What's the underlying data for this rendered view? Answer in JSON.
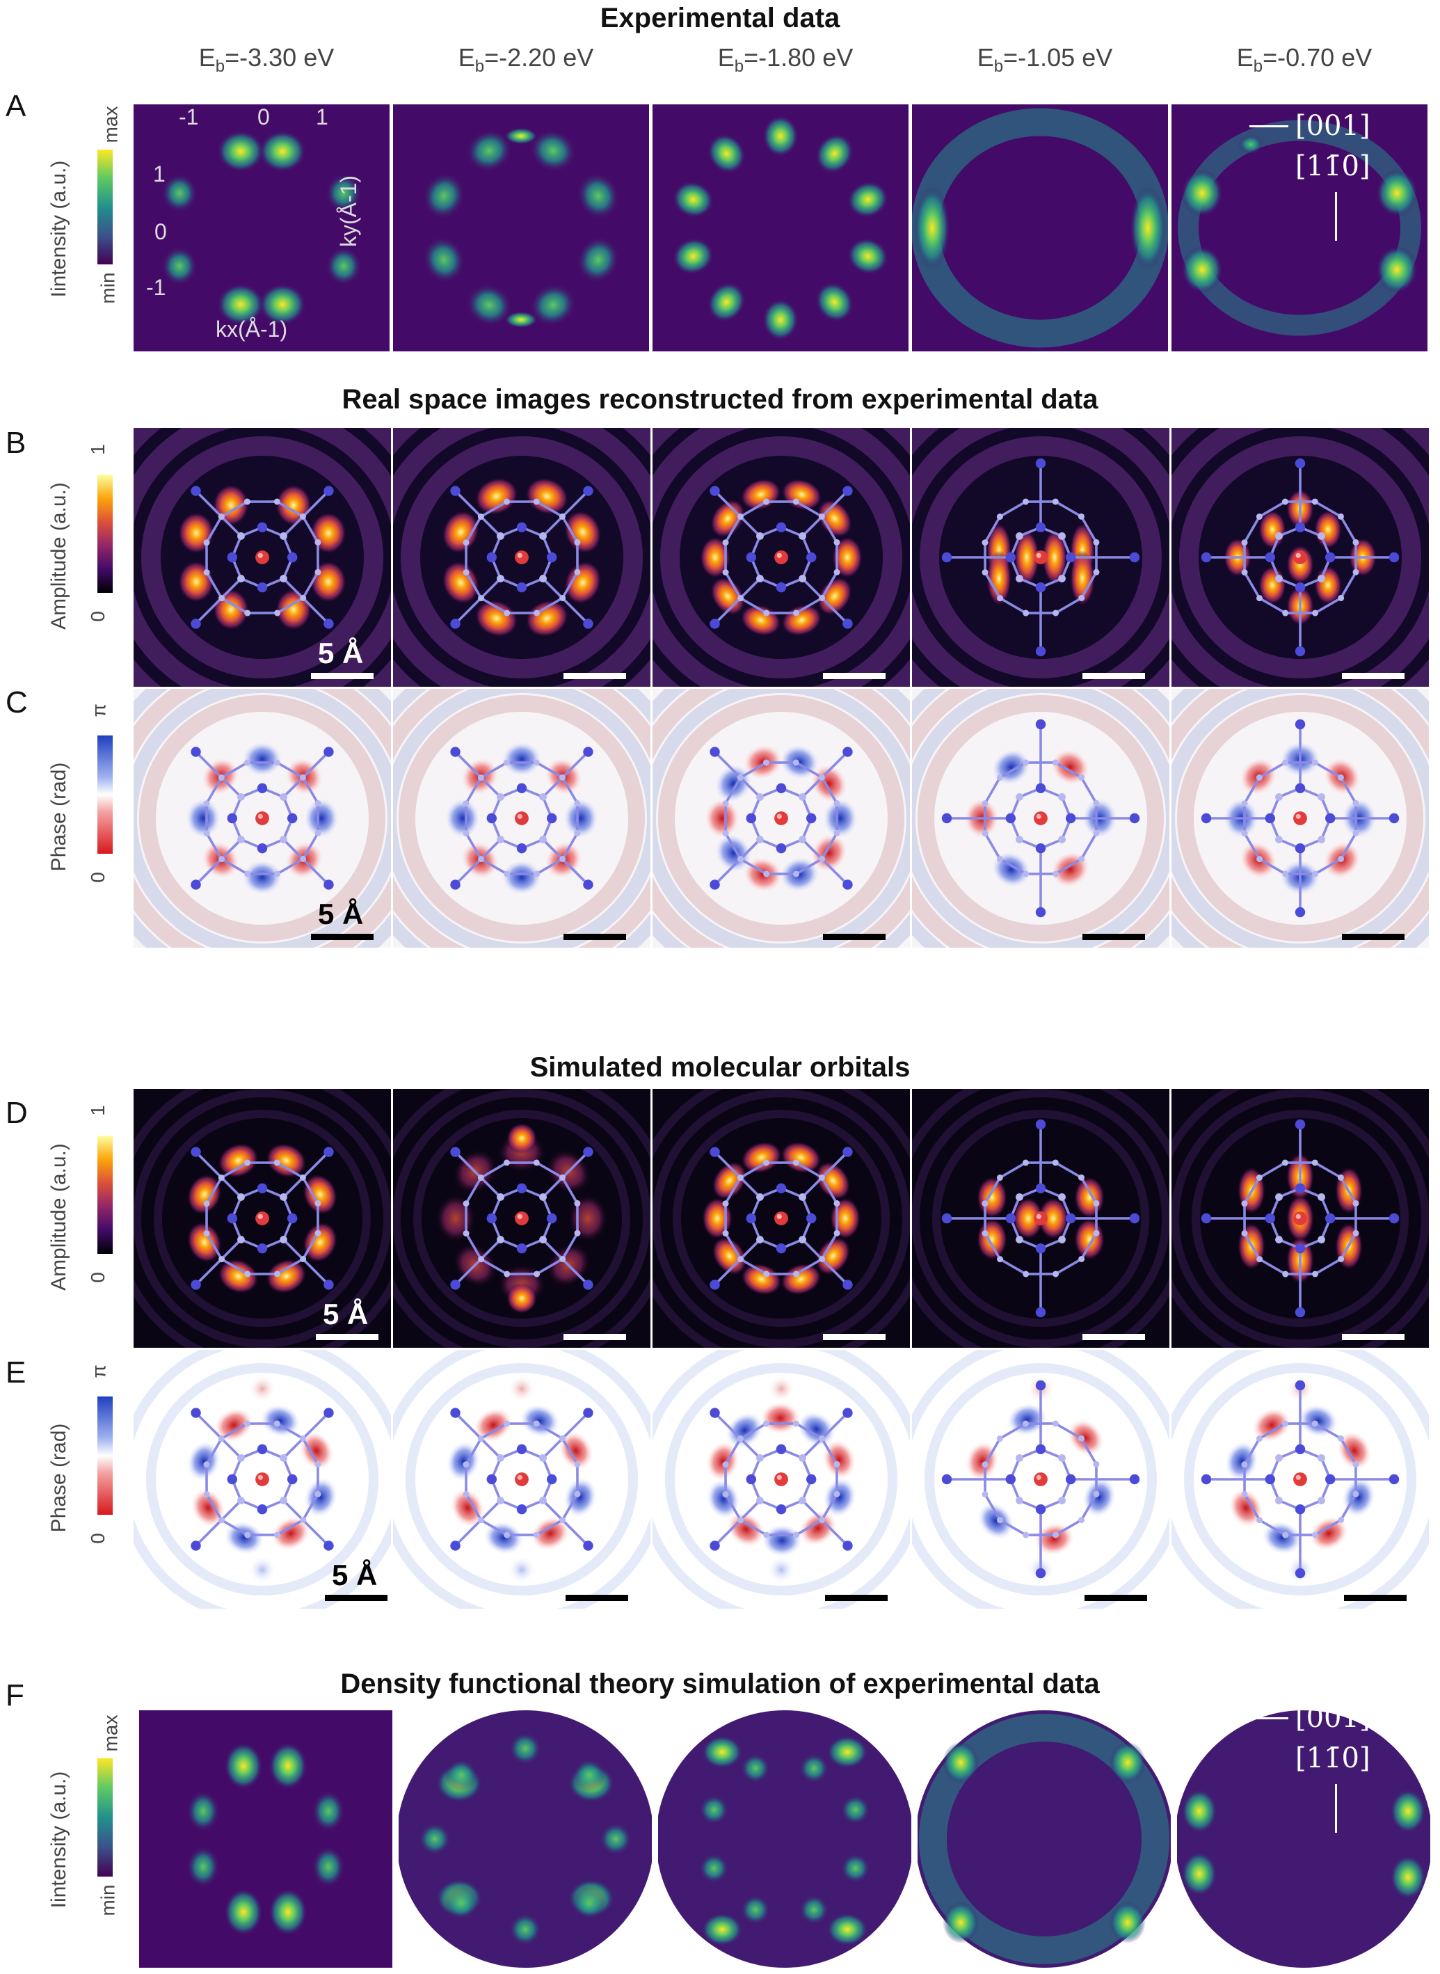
{
  "titles": {
    "experimental": "Experimental data",
    "reconstructed": "Real space images reconstructed from experimental data",
    "simulated": "Simulated molecular orbitals",
    "dft": "Density functional theory simulation of experimental data"
  },
  "row_letters": {
    "a": "A",
    "b": "B",
    "c": "C",
    "d": "D",
    "e": "E",
    "f": "F"
  },
  "energies": [
    {
      "prefix": "E",
      "sub": "b",
      "value": "=-3.30 eV"
    },
    {
      "prefix": "E",
      "sub": "b",
      "value": "=-2.20 eV"
    },
    {
      "prefix": "E",
      "sub": "b",
      "value": "=-1.80 eV"
    },
    {
      "prefix": "E",
      "sub": "b",
      "value": "=-1.05 eV"
    },
    {
      "prefix": "E",
      "sub": "b",
      "value": "=-0.70 eV"
    }
  ],
  "colorbars": {
    "intensity_label": "Iintensity (a.u.)",
    "intensity_min": "min",
    "intensity_max": "max",
    "amplitude_label": "Amplitude (a.u.)",
    "amplitude_min": "0",
    "amplitude_max": "1",
    "phase_label": "Phase (rad)",
    "phase_min": "0",
    "phase_max": "π"
  },
  "axes": {
    "kx_label": "kx(Å-1)",
    "ky_label": "ky(Å-1)",
    "kx_ticks": [
      "-1",
      "0",
      "1"
    ],
    "ky_ticks": [
      "1",
      "0",
      "-1"
    ]
  },
  "directions": {
    "d1": "[001]",
    "d2": "[11̄0]"
  },
  "scale": "5 Å",
  "colors": {
    "viridis_bg": "#440a68",
    "inferno_bg": "#0a0514",
    "phase_red": "#d7191c",
    "phase_blue": "#1f3fbf",
    "atom_blue": "#5a5ae0",
    "center_atom": "#e23b3b"
  }
}
